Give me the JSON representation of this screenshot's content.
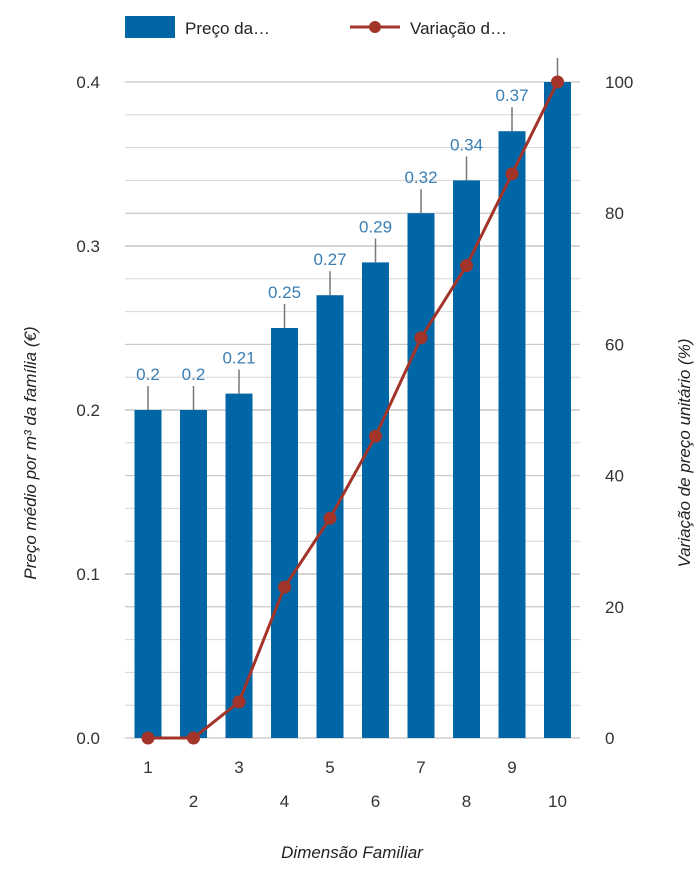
{
  "chart_data": {
    "type": "bar+line",
    "categories": [
      "1",
      "2",
      "3",
      "4",
      "5",
      "6",
      "7",
      "8",
      "9",
      "10"
    ],
    "series": [
      {
        "name": "Preço da…",
        "type": "bar",
        "axis": "left",
        "color": "#0066a6",
        "values": [
          0.2,
          0.2,
          0.21,
          0.25,
          0.27,
          0.29,
          0.32,
          0.34,
          0.37,
          0.4
        ],
        "labels": [
          "0.2",
          "0.2",
          "0.21",
          "0.25",
          "0.27",
          "0.29",
          "0.32",
          "0.34",
          "0.37",
          ""
        ]
      },
      {
        "name": "Variação d…",
        "type": "line",
        "axis": "right",
        "color": "#a3342a",
        "values": [
          0,
          0,
          5.5,
          23,
          33.5,
          46,
          61,
          72,
          86,
          100
        ]
      }
    ],
    "xlabel": "Dimensão Familiar",
    "ylabel_left": "Preço médio por m³ da família (€)",
    "ylabel_right": "Variação de preço unitário (%)",
    "ylim_left": [
      0,
      0.4
    ],
    "ylim_right": [
      0,
      100
    ],
    "yticks_left": [
      "0.0",
      "0.1",
      "0.2",
      "0.3",
      "0.4"
    ],
    "yticks_right": [
      "0",
      "20",
      "40",
      "60",
      "80",
      "100"
    ],
    "grid": true,
    "legend_position": "top"
  }
}
